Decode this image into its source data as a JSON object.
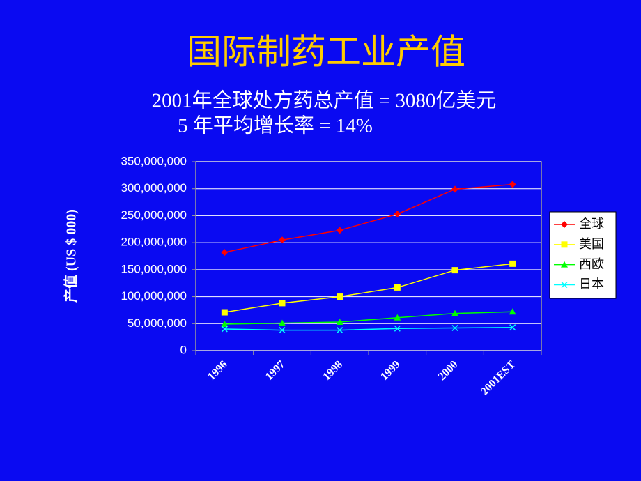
{
  "chart_data": {
    "type": "line",
    "title": "国际制药工业产值",
    "subtitle_lines": [
      "2001年全球处方药总产值 = 3080亿美元",
      "5 年平均增长率 = 14%"
    ],
    "y_label": "产值 (US $ 000)",
    "categories": [
      "1996",
      "1997",
      "1998",
      "1999",
      "2000",
      "2001EST"
    ],
    "series": [
      {
        "name": "全球",
        "color": "#ff0000",
        "marker": "diamond",
        "values": [
          182000000,
          205000000,
          223000000,
          253000000,
          299000000,
          308000000
        ]
      },
      {
        "name": "美国",
        "color": "#ffff00",
        "marker": "square",
        "values": [
          71000000,
          88000000,
          100000000,
          117000000,
          149000000,
          161000000
        ]
      },
      {
        "name": "西欧",
        "color": "#00ff00",
        "marker": "triangle",
        "values": [
          49000000,
          51000000,
          53000000,
          61000000,
          69000000,
          72000000
        ]
      },
      {
        "name": "日本",
        "color": "#00ffff",
        "marker": "x",
        "values": [
          40000000,
          38000000,
          38000000,
          41000000,
          42000000,
          43000000
        ]
      }
    ],
    "ylim": [
      0,
      350000000
    ],
    "yticks": [
      0,
      {
        "value": 50000000,
        "label": "50,000,000"
      },
      {
        "value": 100000000,
        "label": "100,000,000"
      },
      {
        "value": 150000000,
        "label": "150,000,000"
      },
      {
        "value": 200000000,
        "label": "200,000,000"
      },
      {
        "value": 250000000,
        "label": "250,000,000"
      },
      {
        "value": 300000000,
        "label": "300,000,000"
      },
      {
        "value": 350000000,
        "label": "350,000,000"
      }
    ],
    "grid": true,
    "legend": "right"
  }
}
